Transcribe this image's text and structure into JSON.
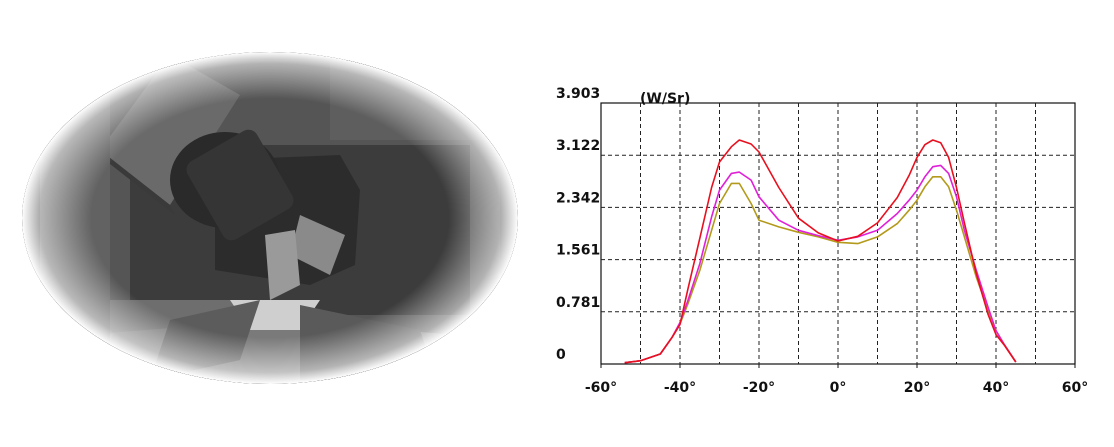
{
  "chart_data": {
    "type": "line",
    "y_unit": "(W/Sr)",
    "x": [
      -54,
      -50,
      -45,
      -42,
      -40,
      -38,
      -35,
      -32,
      -30,
      -27,
      -25,
      -22,
      -20,
      -15,
      -10,
      -5,
      0,
      5,
      10,
      15,
      18,
      20,
      22,
      24,
      26,
      28,
      30,
      32,
      35,
      38,
      40,
      42,
      45
    ],
    "series": [
      {
        "color": "#e8101e",
        "values": [
          0.02,
          0.05,
          0.15,
          0.4,
          0.59,
          1.12,
          1.88,
          2.64,
          3.02,
          3.25,
          3.35,
          3.29,
          3.17,
          2.64,
          2.18,
          1.96,
          1.84,
          1.91,
          2.11,
          2.49,
          2.82,
          3.09,
          3.28,
          3.35,
          3.31,
          3.09,
          2.64,
          2.11,
          1.35,
          0.74,
          0.44,
          0.29,
          0.03
        ]
      },
      {
        "color": "#e020d8",
        "values": [
          0.02,
          0.05,
          0.15,
          0.4,
          0.62,
          0.95,
          1.5,
          2.2,
          2.6,
          2.85,
          2.87,
          2.75,
          2.5,
          2.15,
          2.0,
          1.92,
          1.85,
          1.9,
          2.0,
          2.25,
          2.45,
          2.6,
          2.8,
          2.95,
          2.97,
          2.85,
          2.5,
          2.0,
          1.4,
          0.85,
          0.5,
          0.3,
          0.03
        ]
      },
      {
        "color": "#b39a1a",
        "values": [
          0.02,
          0.05,
          0.15,
          0.4,
          0.6,
          0.9,
          1.4,
          2.0,
          2.4,
          2.7,
          2.7,
          2.4,
          2.15,
          2.05,
          1.97,
          1.9,
          1.82,
          1.8,
          1.9,
          2.1,
          2.3,
          2.45,
          2.65,
          2.8,
          2.8,
          2.65,
          2.3,
          1.9,
          1.3,
          0.8,
          0.5,
          0.3,
          0.03
        ]
      }
    ],
    "xlim": [
      -60,
      60
    ],
    "xticks": [
      {
        "value": -60,
        "label": "-60°"
      },
      {
        "value": -40,
        "label": "-40°"
      },
      {
        "value": -20,
        "label": "-20°"
      },
      {
        "value": 0,
        "label": "0°"
      },
      {
        "value": 20,
        "label": "20°"
      },
      {
        "value": 40,
        "label": "40°"
      },
      {
        "value": 60,
        "label": "60°"
      }
    ],
    "xgrid": [
      -50,
      -40,
      -30,
      -20,
      -10,
      0,
      10,
      20,
      30,
      40,
      50
    ],
    "ylim": [
      0,
      3.903
    ],
    "yticks": [
      0,
      0.781,
      1.561,
      2.342,
      3.122,
      3.903
    ],
    "grid": true
  }
}
